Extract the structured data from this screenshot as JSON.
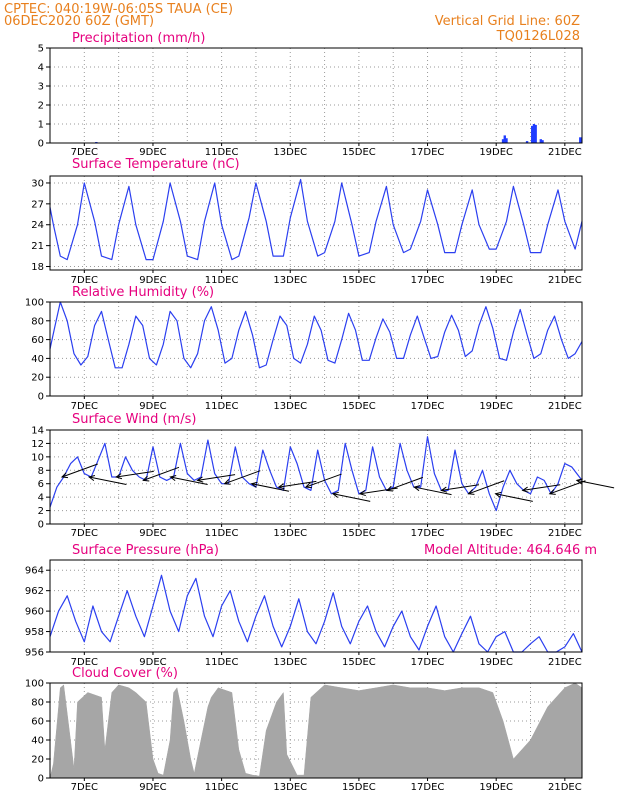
{
  "header": {
    "line1": "CPTEC:  040:19W-06:05S  TAUA (CE)",
    "line2": "06DEC2020 60Z (GMT)",
    "grid_note": "Vertical Grid Line: 60Z",
    "code": "TQ0126L028"
  },
  "colors": {
    "header": "#e8801e",
    "title": "#e6007e",
    "line": "#2b3ff0",
    "bar": "#1f3cff",
    "cloud": "#a6a6a6"
  },
  "chart_data": [
    {
      "id": "precip",
      "type": "bar",
      "title": "Precipitation (mm/h)",
      "x_range": [
        0,
        15.5
      ],
      "x_ticks": [
        "7DEC",
        "9DEC",
        "11DEC",
        "13DEC",
        "15DEC",
        "17DEC",
        "19DEC",
        "21DEC"
      ],
      "ylim": [
        0,
        5
      ],
      "y_ticks": [
        0,
        1,
        2,
        3,
        4,
        5
      ],
      "x": [
        1.35,
        13.2,
        13.25,
        13.3,
        13.9,
        14.05,
        14.1,
        14.15,
        14.3,
        14.35,
        15.45
      ],
      "values": [
        0.02,
        0.2,
        0.4,
        0.25,
        0.1,
        0.9,
        1.0,
        0.95,
        0.2,
        0.15,
        0.3
      ]
    },
    {
      "id": "temp",
      "type": "line",
      "title": "Surface Temperature (nC)",
      "x_range": [
        0,
        15.5
      ],
      "x_ticks": [
        "7DEC",
        "9DEC",
        "11DEC",
        "13DEC",
        "15DEC",
        "17DEC",
        "19DEC",
        "21DEC"
      ],
      "ylim": [
        17.5,
        31
      ],
      "y_ticks": [
        18,
        21,
        24,
        27,
        30
      ],
      "x": [
        0,
        0.1,
        0.3,
        0.5,
        0.8,
        1.0,
        1.3,
        1.5,
        1.8,
        2.0,
        2.3,
        2.5,
        2.8,
        3.0,
        3.3,
        3.5,
        3.8,
        4.0,
        4.3,
        4.5,
        4.8,
        5.0,
        5.3,
        5.5,
        5.8,
        6.0,
        6.3,
        6.5,
        6.8,
        7.0,
        7.3,
        7.5,
        7.8,
        8.0,
        8.3,
        8.5,
        8.8,
        9.0,
        9.3,
        9.5,
        9.8,
        10.0,
        10.3,
        10.5,
        10.8,
        11.0,
        11.3,
        11.5,
        11.8,
        12.0,
        12.3,
        12.5,
        12.8,
        13.0,
        13.3,
        13.5,
        13.8,
        14.0,
        14.3,
        14.5,
        14.8,
        15.0,
        15.3,
        15.5
      ],
      "values": [
        26.5,
        24.0,
        19.5,
        19.0,
        24.0,
        30.0,
        24.5,
        19.5,
        19.0,
        24.0,
        29.5,
        24.0,
        19.0,
        19.0,
        24.5,
        30.0,
        24.5,
        19.5,
        19.0,
        24.5,
        30.0,
        24.0,
        19.0,
        19.5,
        25.0,
        30.0,
        24.5,
        19.5,
        19.5,
        25.0,
        30.5,
        24.5,
        19.5,
        20.0,
        24.5,
        30.0,
        24.0,
        19.5,
        20.0,
        24.5,
        29.5,
        24.0,
        20.0,
        20.5,
        24.5,
        29.0,
        24.0,
        20.0,
        20.0,
        24.0,
        29.0,
        24.0,
        20.5,
        20.5,
        24.5,
        29.5,
        24.0,
        20.0,
        20.0,
        24.0,
        29.0,
        24.5,
        20.5,
        24.5
      ]
    },
    {
      "id": "rh",
      "type": "line",
      "title": "Relative Humidity (%)",
      "x_range": [
        0,
        15.5
      ],
      "x_ticks": [
        "7DEC",
        "9DEC",
        "11DEC",
        "13DEC",
        "15DEC",
        "17DEC",
        "19DEC",
        "21DEC"
      ],
      "ylim": [
        0,
        100
      ],
      "y_ticks": [
        0,
        20,
        40,
        60,
        80,
        100
      ],
      "x": [
        0,
        0.15,
        0.3,
        0.5,
        0.7,
        0.9,
        1.1,
        1.3,
        1.5,
        1.7,
        1.9,
        2.1,
        2.3,
        2.5,
        2.7,
        2.9,
        3.1,
        3.3,
        3.5,
        3.7,
        3.9,
        4.1,
        4.3,
        4.5,
        4.7,
        4.9,
        5.1,
        5.3,
        5.5,
        5.7,
        5.9,
        6.1,
        6.3,
        6.5,
        6.7,
        6.9,
        7.1,
        7.3,
        7.5,
        7.7,
        7.9,
        8.1,
        8.3,
        8.5,
        8.7,
        8.9,
        9.1,
        9.3,
        9.5,
        9.7,
        9.9,
        10.1,
        10.3,
        10.5,
        10.7,
        10.9,
        11.1,
        11.3,
        11.5,
        11.7,
        11.9,
        12.1,
        12.3,
        12.5,
        12.7,
        12.9,
        13.1,
        13.3,
        13.5,
        13.7,
        13.9,
        14.1,
        14.3,
        14.5,
        14.7,
        14.9,
        15.1,
        15.3,
        15.5
      ],
      "values": [
        50,
        75,
        100,
        80,
        45,
        33,
        42,
        75,
        90,
        60,
        30,
        30,
        55,
        85,
        75,
        40,
        33,
        55,
        90,
        80,
        40,
        30,
        45,
        80,
        95,
        70,
        35,
        40,
        70,
        90,
        65,
        30,
        33,
        60,
        85,
        75,
        40,
        35,
        55,
        85,
        70,
        38,
        35,
        60,
        88,
        70,
        38,
        38,
        62,
        82,
        68,
        40,
        40,
        65,
        85,
        62,
        40,
        42,
        68,
        86,
        70,
        42,
        48,
        75,
        95,
        72,
        40,
        38,
        68,
        92,
        65,
        40,
        45,
        70,
        85,
        60,
        40,
        45,
        58
      ]
    },
    {
      "id": "wind",
      "type": "line",
      "title": "Surface Wind (m/s)",
      "x_range": [
        0,
        15.5
      ],
      "x_ticks": [
        "7DEC",
        "9DEC",
        "11DEC",
        "13DEC",
        "15DEC",
        "17DEC",
        "19DEC",
        "21DEC"
      ],
      "ylim": [
        0,
        14
      ],
      "y_ticks": [
        0,
        2,
        4,
        6,
        8,
        10,
        12,
        14
      ],
      "x": [
        0,
        0.2,
        0.4,
        0.6,
        0.8,
        1.0,
        1.2,
        1.4,
        1.6,
        1.8,
        2.0,
        2.2,
        2.4,
        2.6,
        2.8,
        3.0,
        3.2,
        3.4,
        3.6,
        3.8,
        4.0,
        4.2,
        4.4,
        4.6,
        4.8,
        5.0,
        5.2,
        5.4,
        5.6,
        5.8,
        6.0,
        6.2,
        6.4,
        6.6,
        6.8,
        7.0,
        7.2,
        7.4,
        7.6,
        7.8,
        8.0,
        8.2,
        8.4,
        8.6,
        8.8,
        9.0,
        9.2,
        9.4,
        9.6,
        9.8,
        10.0,
        10.2,
        10.4,
        10.6,
        10.8,
        11.0,
        11.2,
        11.4,
        11.6,
        11.8,
        12.0,
        12.2,
        12.4,
        12.6,
        12.8,
        13.0,
        13.2,
        13.4,
        13.6,
        13.8,
        14.0,
        14.2,
        14.4,
        14.6,
        14.8,
        15.0,
        15.2,
        15.5
      ],
      "values": [
        2.5,
        5.5,
        7,
        9,
        10,
        7.5,
        7,
        9.5,
        12,
        7,
        7,
        10,
        8,
        7,
        6.5,
        11.5,
        7,
        6.5,
        7,
        12,
        7.5,
        6.5,
        7,
        12.5,
        7.5,
        6,
        6,
        11.5,
        7,
        6,
        5.5,
        11,
        8,
        5.5,
        5,
        11.5,
        9,
        5.5,
        5,
        11,
        6.5,
        4.5,
        5,
        12,
        8,
        4.5,
        5,
        11.5,
        7,
        5,
        5.5,
        12,
        8,
        5.5,
        5.5,
        13,
        7.5,
        5,
        5,
        11,
        6,
        4.5,
        5.5,
        8,
        4.5,
        2,
        5.5,
        8,
        6,
        5,
        4.5,
        7,
        6.5,
        4.5,
        6,
        9,
        8.5,
        6.5
      ],
      "arrow_count": 20
    },
    {
      "id": "pressure",
      "type": "line",
      "title": "Surface Pressure (hPa)",
      "annotation": "Model Altitude: 464.646 m",
      "x_range": [
        0,
        15.5
      ],
      "x_ticks": [
        "7DEC",
        "9DEC",
        "11DEC",
        "13DEC",
        "15DEC",
        "17DEC",
        "19DEC",
        "21DEC"
      ],
      "ylim": [
        956,
        965
      ],
      "y_ticks": [
        956,
        958,
        960,
        962,
        964
      ],
      "x": [
        0,
        0.25,
        0.5,
        0.75,
        1.0,
        1.25,
        1.5,
        1.75,
        2.0,
        2.25,
        2.5,
        2.75,
        3.0,
        3.25,
        3.5,
        3.75,
        4.0,
        4.25,
        4.5,
        4.75,
        5.0,
        5.25,
        5.5,
        5.75,
        6.0,
        6.25,
        6.5,
        6.75,
        7.0,
        7.25,
        7.5,
        7.75,
        8.0,
        8.25,
        8.5,
        8.75,
        9.0,
        9.25,
        9.5,
        9.75,
        10.0,
        10.25,
        10.5,
        10.75,
        11.0,
        11.25,
        11.5,
        11.75,
        12.0,
        12.25,
        12.5,
        12.75,
        13.0,
        13.25,
        13.5,
        13.75,
        14.0,
        14.25,
        14.5,
        14.75,
        15.0,
        15.25,
        15.5
      ],
      "values": [
        957.5,
        960,
        961.5,
        959,
        957,
        960.5,
        958,
        957,
        959.5,
        962,
        959.5,
        957.5,
        960.5,
        963.5,
        960,
        958,
        961.5,
        963.2,
        959.5,
        957.5,
        960.5,
        962,
        959,
        957,
        959.5,
        961.5,
        958.5,
        956.5,
        958.5,
        961.2,
        958,
        956.8,
        959,
        961.8,
        958.5,
        956.8,
        959,
        960.5,
        958,
        956.5,
        958.5,
        960,
        957.5,
        956.2,
        958.5,
        960.5,
        957.5,
        956,
        957.8,
        959.5,
        956.8,
        956,
        957.5,
        958,
        956,
        955.5,
        956.8,
        957.5,
        956,
        955,
        956.5,
        957.8,
        956
      ]
    },
    {
      "id": "cloud",
      "type": "area",
      "title": "Cloud Cover (%)",
      "x_range": [
        0,
        15.5
      ],
      "x_ticks": [
        "7DEC",
        "9DEC",
        "11DEC",
        "13DEC",
        "15DEC",
        "17DEC",
        "19DEC",
        "21DEC"
      ],
      "ylim": [
        0,
        100
      ],
      "y_ticks": [
        0,
        20,
        40,
        60,
        80,
        100
      ],
      "x": [
        0,
        0.1,
        0.3,
        0.4,
        0.7,
        0.8,
        1.1,
        1.5,
        1.6,
        1.8,
        2.0,
        2.3,
        2.5,
        2.8,
        3.0,
        3.15,
        3.3,
        3.5,
        3.6,
        3.7,
        3.9,
        4.1,
        4.2,
        4.4,
        4.6,
        4.7,
        4.9,
        5.3,
        5.5,
        5.7,
        5.9,
        6.1,
        6.3,
        6.6,
        6.8,
        6.9,
        7.2,
        7.4,
        7.6,
        8.0,
        8.5,
        9.0,
        9.5,
        10.0,
        10.5,
        11.0,
        11.5,
        12.0,
        12.5,
        12.9,
        13.2,
        13.5,
        14.0,
        14.5,
        15.0,
        15.3,
        15.5
      ],
      "values": [
        0,
        15,
        95,
        98,
        10,
        80,
        90,
        85,
        30,
        90,
        98,
        95,
        90,
        80,
        20,
        5,
        3,
        40,
        90,
        95,
        60,
        20,
        5,
        40,
        75,
        85,
        95,
        90,
        30,
        5,
        3,
        2,
        50,
        80,
        90,
        25,
        3,
        3,
        85,
        98,
        95,
        92,
        95,
        98,
        95,
        95,
        92,
        95,
        95,
        90,
        60,
        20,
        40,
        75,
        95,
        100,
        95
      ]
    }
  ]
}
